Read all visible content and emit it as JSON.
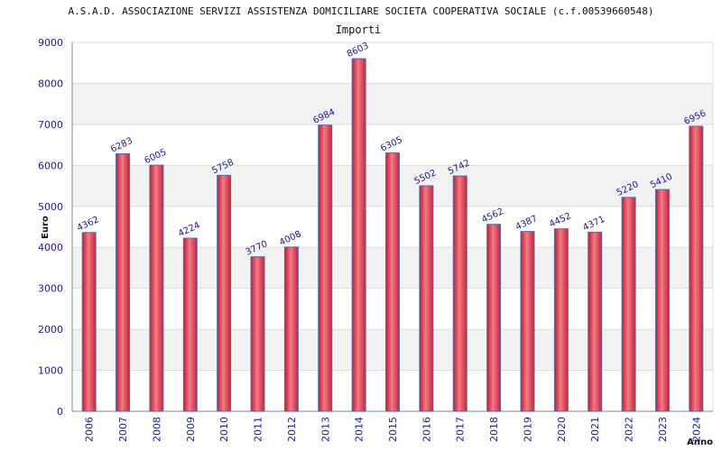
{
  "chart_data": {
    "type": "bar",
    "title": "A.S.A.D. ASSOCIAZIONE SERVIZI ASSISTENZA DOMICILIARE SOCIETA COOPERATIVA SOCIALE (c.f.00539660548)",
    "subtitle": "Importi",
    "xlabel": "Anno",
    "ylabel": "Euro",
    "ylim": [
      0,
      9000
    ],
    "yticks": [
      0,
      1000,
      2000,
      3000,
      4000,
      5000,
      6000,
      7000,
      8000,
      9000
    ],
    "grid": true,
    "categories": [
      "2006",
      "2007",
      "2008",
      "2009",
      "2010",
      "2011",
      "2012",
      "2013",
      "2014",
      "2015",
      "2016",
      "2017",
      "2018",
      "2019",
      "2020",
      "2021",
      "2022",
      "2023",
      "2024"
    ],
    "values": [
      4362,
      6283,
      6005,
      4224,
      5758,
      3770,
      4008,
      6984,
      8603,
      6305,
      5502,
      5742,
      4562,
      4387,
      4452,
      4371,
      5220,
      5410,
      6956
    ],
    "colors": {
      "bar": "#e23a4a",
      "bar_edge": "#5a6aa8",
      "text": "#1a1a9a",
      "band": "#f2f2f2"
    }
  }
}
